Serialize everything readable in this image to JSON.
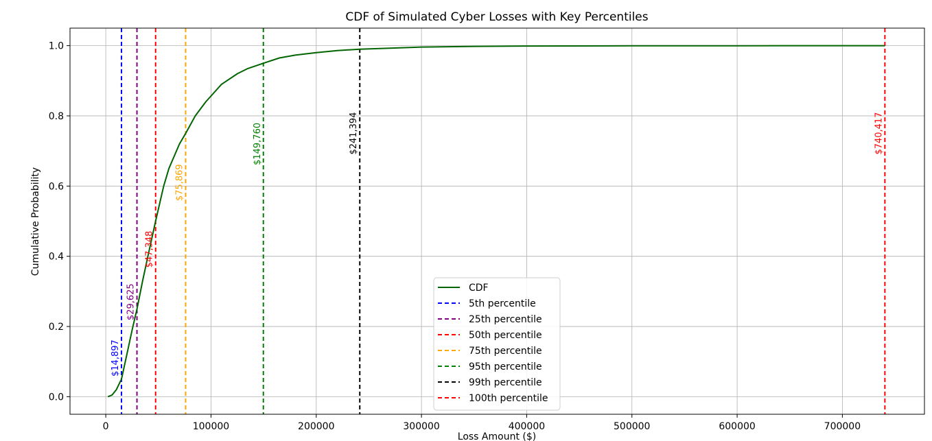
{
  "chart_data": {
    "type": "line",
    "title": "CDF of Simulated Cyber Losses with Key Percentiles",
    "xlabel": "Loss Amount ($)",
    "ylabel": "Cumulative Probability",
    "xlim": [
      -34000,
      778000
    ],
    "ylim": [
      -0.05,
      1.05
    ],
    "xticks": [
      0,
      100000,
      200000,
      300000,
      400000,
      500000,
      600000,
      700000
    ],
    "xtick_labels": [
      "0",
      "100000",
      "200000",
      "300000",
      "400000",
      "500000",
      "600000",
      "700000"
    ],
    "yticks": [
      0.0,
      0.2,
      0.4,
      0.6,
      0.8,
      1.0
    ],
    "ytick_labels": [
      "0.0",
      "0.2",
      "0.4",
      "0.6",
      "0.8",
      "1.0"
    ],
    "grid": true,
    "legend_placement": "lower center",
    "series": [
      {
        "name": "CDF",
        "color": "#006400",
        "style": "solid",
        "x": [
          2000,
          6000,
          10000,
          14897,
          20000,
          25000,
          29625,
          35000,
          40000,
          47348,
          55000,
          60000,
          70000,
          75869,
          85000,
          95000,
          110000,
          125000,
          135000,
          149760,
          165000,
          180000,
          200000,
          220000,
          241394,
          270000,
          300000,
          350000,
          400000,
          500000,
          600000,
          740417
        ],
        "y": [
          0.0,
          0.005,
          0.02,
          0.05,
          0.12,
          0.19,
          0.25,
          0.33,
          0.4,
          0.5,
          0.6,
          0.65,
          0.72,
          0.75,
          0.8,
          0.84,
          0.89,
          0.92,
          0.935,
          0.95,
          0.965,
          0.973,
          0.98,
          0.986,
          0.99,
          0.993,
          0.996,
          0.998,
          0.999,
          0.9995,
          0.9998,
          1.0
        ]
      }
    ],
    "percentiles": [
      {
        "name": "5th percentile",
        "value": 14897,
        "label": "$14,897",
        "color": "#0000ff",
        "label_y": 0.11
      },
      {
        "name": "25th percentile",
        "value": 29625,
        "label": "$29,625",
        "color": "#800080",
        "label_y": 0.27
      },
      {
        "name": "50th percentile",
        "value": 47348,
        "label": "$47,348",
        "color": "#ff0000",
        "label_y": 0.42
      },
      {
        "name": "75th percentile",
        "value": 75869,
        "label": "$75,869",
        "color": "#ffa500",
        "label_y": 0.61
      },
      {
        "name": "95th percentile",
        "value": 149760,
        "label": "$149,760",
        "color": "#008000",
        "label_y": 0.72
      },
      {
        "name": "99th percentile",
        "value": 241394,
        "label": "$241,394",
        "color": "#000000",
        "label_y": 0.75
      },
      {
        "name": "100th percentile",
        "value": 740417,
        "label": "$740,417",
        "color": "#ff0000",
        "label_y": 0.75
      }
    ]
  }
}
